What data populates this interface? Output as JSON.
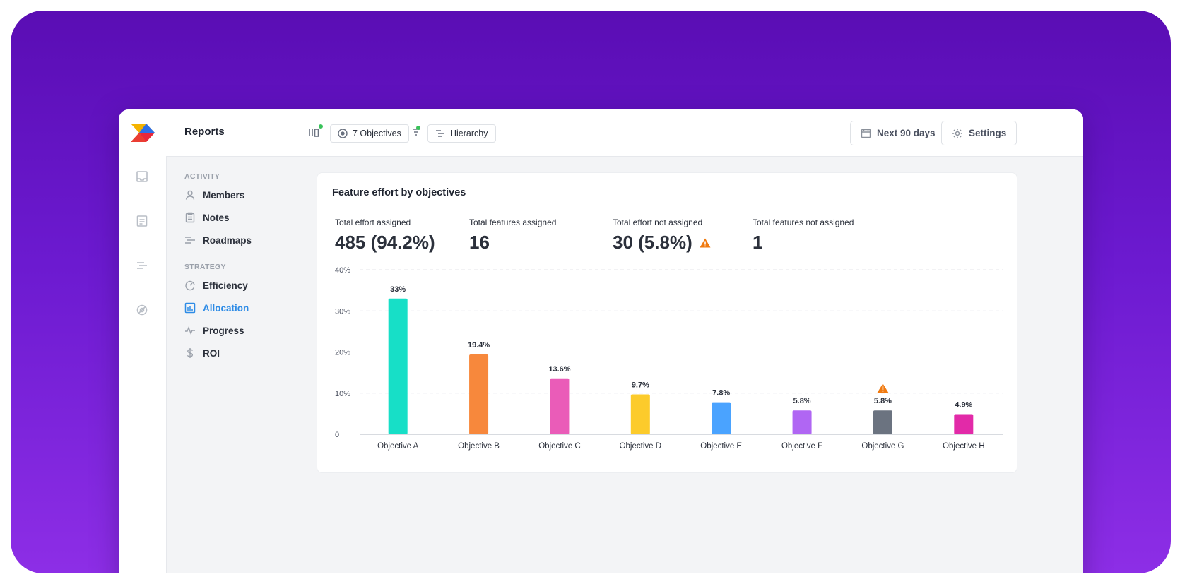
{
  "app": {
    "title": "Reports"
  },
  "topbar": {
    "objectives_chip": "7 Objectives",
    "hierarchy_chip": "Hierarchy",
    "date_range_button": "Next 90 days",
    "settings_button": "Settings"
  },
  "sidebar": {
    "sections": [
      {
        "label": "ACTIVITY",
        "items": [
          {
            "label": "Members",
            "icon": "user-icon"
          },
          {
            "label": "Notes",
            "icon": "clipboard-icon"
          },
          {
            "label": "Roadmaps",
            "icon": "roadmap-icon"
          }
        ]
      },
      {
        "label": "STRATEGY",
        "items": [
          {
            "label": "Efficiency",
            "icon": "gauge-icon"
          },
          {
            "label": "Allocation",
            "icon": "bar-chart-icon",
            "active": true
          },
          {
            "label": "Progress",
            "icon": "pulse-icon"
          },
          {
            "label": "ROI",
            "icon": "dollar-icon"
          }
        ]
      }
    ]
  },
  "report": {
    "title": "Feature effort by objectives",
    "stats": [
      {
        "label": "Total effort assigned",
        "value": "485 (94.2%)"
      },
      {
        "label": "Total features assigned",
        "value": "16"
      },
      {
        "label": "Total effort not assigned",
        "value": "30 (5.8%)",
        "warning": true
      },
      {
        "label": "Total features not assigned",
        "value": "1"
      }
    ]
  },
  "colors": {
    "accent": "#2d8be6",
    "warning": "#f07a10",
    "background_top": "#5a0db4",
    "background_bottom": "#8d2ee6"
  },
  "chart_data": {
    "type": "bar",
    "categories": [
      "Objective A",
      "Objective B",
      "Objective C",
      "Objective D",
      "Objective E",
      "Objective F",
      "Objective G",
      "Objective H"
    ],
    "values": [
      33,
      19.4,
      13.6,
      9.7,
      7.8,
      5.8,
      5.8,
      4.9
    ],
    "data_labels": [
      "33%",
      "19.4%",
      "13.6%",
      "9.7%",
      "7.8%",
      "5.8%",
      "5.8%",
      "4.9%"
    ],
    "colors": [
      "#17dfc7",
      "#f7883c",
      "#ea5cb8",
      "#fccb2b",
      "#4aa3ff",
      "#b066f3",
      "#6b7380",
      "#e22aa8"
    ],
    "warnings": [
      false,
      false,
      false,
      false,
      false,
      false,
      true,
      false
    ],
    "yticks": [
      0,
      10,
      20,
      30,
      40
    ],
    "ytick_labels": [
      "0",
      "10%",
      "20%",
      "30%",
      "40%"
    ],
    "ylim": [
      0,
      40
    ],
    "grid": true,
    "title": "",
    "xlabel": "",
    "ylabel": ""
  }
}
